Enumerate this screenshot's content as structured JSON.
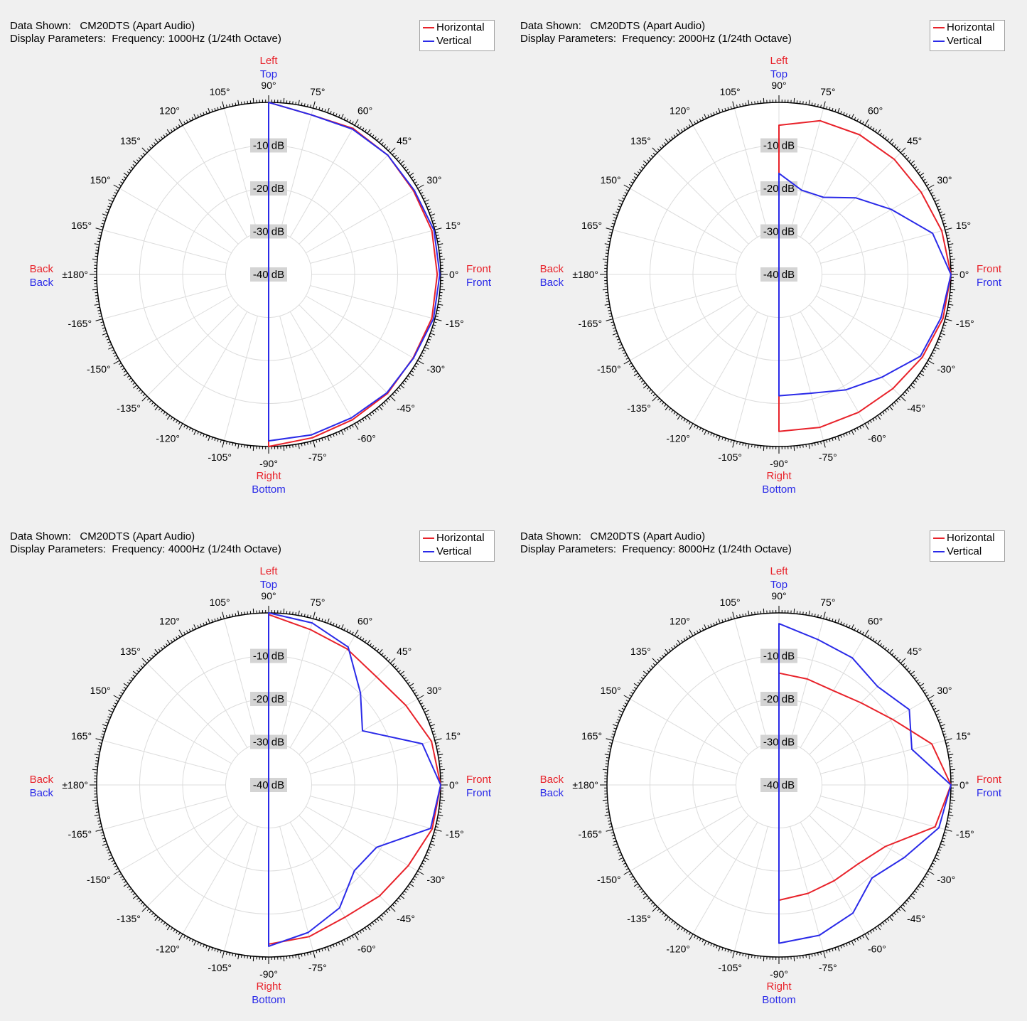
{
  "labels": {
    "data_shown": "Data Shown:",
    "display_parameters": "Display Parameters:",
    "legend_horizontal": "Horizontal",
    "legend_vertical": "Vertical",
    "side_top_red": "Left",
    "side_top_blue": "Top",
    "side_bottom_red": "Right",
    "side_bottom_blue": "Bottom",
    "side_left_red": "Back",
    "side_left_blue": "Back",
    "side_right_red": "Front",
    "side_right_blue": "Front"
  },
  "colors": {
    "horizontal": "#e8222a",
    "vertical": "#2a2ae8"
  },
  "panels": [
    {
      "device": "CM20DTS (Apart Audio)",
      "params": "Frequency: 1000Hz (1/24th Octave)"
    },
    {
      "device": "CM20DTS (Apart Audio)",
      "params": "Frequency: 2000Hz (1/24th Octave)"
    },
    {
      "device": "CM20DTS (Apart Audio)",
      "params": "Frequency: 4000Hz (1/24th Octave)"
    },
    {
      "device": "CM20DTS (Apart Audio)",
      "params": "Frequency: 8000Hz (1/24th Octave)"
    }
  ],
  "chart_data": [
    {
      "type": "line",
      "coordinate_system": "polar",
      "title": "Frequency: 1000Hz (1/24th Octave)",
      "angle_ticks": [
        "90°",
        "75°",
        "60°",
        "45°",
        "30°",
        "15°",
        "0°",
        "-15°",
        "-30°",
        "-45°",
        "-60°",
        "-75°",
        "-90°",
        "-105°",
        "-120°",
        "-135°",
        "-150°",
        "-165°",
        "±180°",
        "165°",
        "150°",
        "135°",
        "120°",
        "105°"
      ],
      "radial_labels": [
        "-10 dB",
        "-20 dB",
        "-30 dB",
        "-40 dB"
      ],
      "rlim_db": [
        -40,
        0
      ],
      "angles_deg": [
        90,
        75,
        60,
        45,
        30,
        15,
        0,
        -15,
        -30,
        -45,
        -60,
        -75,
        -90
      ],
      "series": [
        {
          "name": "Horizontal",
          "values_db": [
            0,
            -1.6,
            -0.8,
            -0.8,
            -1.1,
            -0.7,
            -0.8,
            -0.7,
            -1.2,
            -0.9,
            -1.0,
            -0.7,
            0
          ]
        },
        {
          "name": "Vertical",
          "values_db": [
            0,
            -1.6,
            -1.0,
            -0.8,
            -0.9,
            -0.2,
            -0.2,
            -0.3,
            -1.1,
            -1.1,
            -1.5,
            -1.4,
            -1.3
          ]
        }
      ]
    },
    {
      "type": "line",
      "coordinate_system": "polar",
      "title": "Frequency: 2000Hz (1/24th Octave)",
      "angle_ticks": [
        "90°",
        "75°",
        "60°",
        "45°",
        "30°",
        "15°",
        "0°",
        "-15°",
        "-30°",
        "-45°",
        "-60°",
        "-75°",
        "-90°",
        "-105°",
        "-120°",
        "-135°",
        "-150°",
        "-165°",
        "±180°",
        "165°",
        "150°",
        "135°",
        "120°",
        "105°"
      ],
      "radial_labels": [
        "-10 dB",
        "-20 dB",
        "-30 dB",
        "-40 dB"
      ],
      "rlim_db": [
        -40,
        0
      ],
      "angles_deg": [
        90,
        75,
        60,
        45,
        30,
        15,
        0,
        -15,
        -30,
        -45,
        -60,
        -75,
        -90
      ],
      "series": [
        {
          "name": "Horizontal",
          "values_db": [
            -5.3,
            -3.0,
            -2.5,
            -2.1,
            -1.8,
            -0.8,
            0,
            -0.5,
            -1.5,
            -2.5,
            -3.0,
            -3.2,
            -3.5
          ]
        },
        {
          "name": "Vertical",
          "values_db": [
            -16.5,
            -19.7,
            -19.3,
            -14.8,
            -9.8,
            -3.0,
            0,
            -1.0,
            -2.0,
            -6.2,
            -9.0,
            -11.4,
            -11.8
          ]
        }
      ]
    },
    {
      "type": "line",
      "coordinate_system": "polar",
      "title": "Frequency: 4000Hz (1/24th Octave)",
      "angle_ticks": [
        "90°",
        "75°",
        "60°",
        "45°",
        "30°",
        "15°",
        "0°",
        "-15°",
        "-30°",
        "-45°",
        "-60°",
        "-75°",
        "-90°",
        "-105°",
        "-120°",
        "-135°",
        "-150°",
        "-165°",
        "±180°",
        "165°",
        "150°",
        "135°",
        "120°",
        "105°"
      ],
      "radial_labels": [
        "-10 dB",
        "-20 dB",
        "-30 dB",
        "-40 dB"
      ],
      "rlim_db": [
        -40,
        0
      ],
      "angles_deg": [
        90,
        75,
        60,
        45,
        30,
        15,
        0,
        -15,
        -30,
        -45,
        -60,
        -75,
        -90
      ],
      "series": [
        {
          "name": "Horizontal",
          "values_db": [
            -0.4,
            -2.6,
            -3.5,
            -4.5,
            -3.1,
            -0.8,
            0,
            -0.6,
            -2.5,
            -3.5,
            -4.5,
            -3.5,
            -3.0
          ]
        },
        {
          "name": "Vertical",
          "values_db": [
            0,
            -1.0,
            -3.0,
            -9.8,
            -14.8,
            -3.0,
            0,
            -1.0,
            -11.0,
            -11.8,
            -7.0,
            -4.5,
            -2.5
          ]
        }
      ]
    },
    {
      "type": "line",
      "coordinate_system": "polar",
      "title": "Frequency: 8000Hz (1/24th Octave)",
      "angle_ticks": [
        "90°",
        "75°",
        "60°",
        "45°",
        "30°",
        "15°",
        "0°",
        "-15°",
        "-30°",
        "-45°",
        "-60°",
        "-75°",
        "-90°",
        "-105°",
        "-120°",
        "-135°",
        "-150°",
        "-165°",
        "±180°",
        "165°",
        "150°",
        "135°",
        "120°",
        "105°"
      ],
      "radial_labels": [
        "-10 dB",
        "-20 dB",
        "-30 dB",
        "-40 dB"
      ],
      "rlim_db": [
        -40,
        0
      ],
      "angles_deg": [
        90,
        75,
        60,
        45,
        30,
        15,
        0,
        -15,
        -30,
        -45,
        -60,
        -75,
        -90
      ],
      "series": [
        {
          "name": "Horizontal",
          "values_db": [
            -14.0,
            -14.5,
            -14.7,
            -13.0,
            -9.5,
            -3.2,
            0,
            -2.4,
            -11.4,
            -14.0,
            -14.3,
            -13.9,
            -13.2
          ]
        },
        {
          "name": "Vertical",
          "values_db": [
            -2.5,
            -5.0,
            -5.9,
            -7.6,
            -5.0,
            -8.0,
            0,
            -1.5,
            -6.3,
            -9.4,
            -5.6,
            -3.8,
            -3.2
          ]
        }
      ]
    }
  ]
}
